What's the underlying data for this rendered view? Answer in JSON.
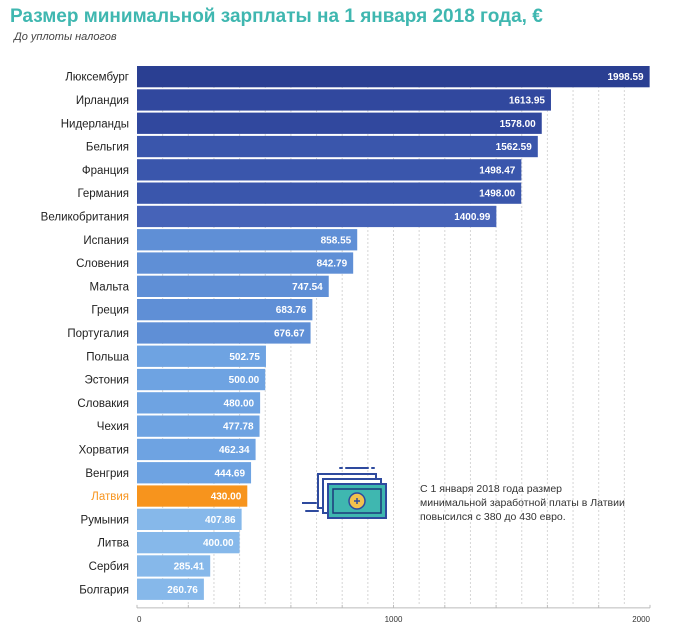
{
  "title": "Размер минимальной зарплаты на 1 января 2018 года, €",
  "subtitle": "До уплоты налогов",
  "annotation": "С 1 января 2018 года размер минимальной заработной платы в Латвии повысился с 380 до 430 евро.",
  "icon": "money-banknote-icon",
  "colors": {
    "dark": "#2e4a9e",
    "medium": "#4a6fc0",
    "light": "#6aa3e0",
    "lightest": "#86b8ea",
    "highlight": "#f7941d",
    "highlight_text": "#f7941d",
    "title": "#3fb7b0"
  },
  "chart_data": {
    "type": "bar",
    "orientation": "horizontal",
    "categories": [
      "Люксембург",
      "Ирландия",
      "Нидерланды",
      "Бельгия",
      "Франция",
      "Германия",
      "Великобритания",
      "Испания",
      "Словения",
      "Мальта",
      "Греция",
      "Португалия",
      "Польша",
      "Эстония",
      "Словакия",
      "Чехия",
      "Хорватия",
      "Венгрия",
      "Латвия",
      "Румыния",
      "Литва",
      "Сербия",
      "Болгария"
    ],
    "values": [
      1998.59,
      1613.95,
      1578.0,
      1562.59,
      1498.47,
      1498.0,
      1400.99,
      858.55,
      842.79,
      747.54,
      683.76,
      676.67,
      502.75,
      500.0,
      480.0,
      477.78,
      462.34,
      444.69,
      430.0,
      407.86,
      400.0,
      285.41,
      260.76
    ],
    "value_labels": [
      "1998.59",
      "1613.95",
      "1578.00",
      "1562.59",
      "1498.47",
      "1498.00",
      "1400.99",
      "858.55",
      "842.79",
      "747.54",
      "683.76",
      "676.67",
      "502.75",
      "500.00",
      "480.00",
      "477.78",
      "462.34",
      "444.69",
      "430.00",
      "407.86",
      "400.00",
      "285.41",
      "260.76"
    ],
    "highlight": "Латвия",
    "xlim": [
      0,
      2000
    ],
    "xticks": [
      0,
      1000,
      2000
    ],
    "grid": true,
    "xlabel": "",
    "ylabel": ""
  }
}
